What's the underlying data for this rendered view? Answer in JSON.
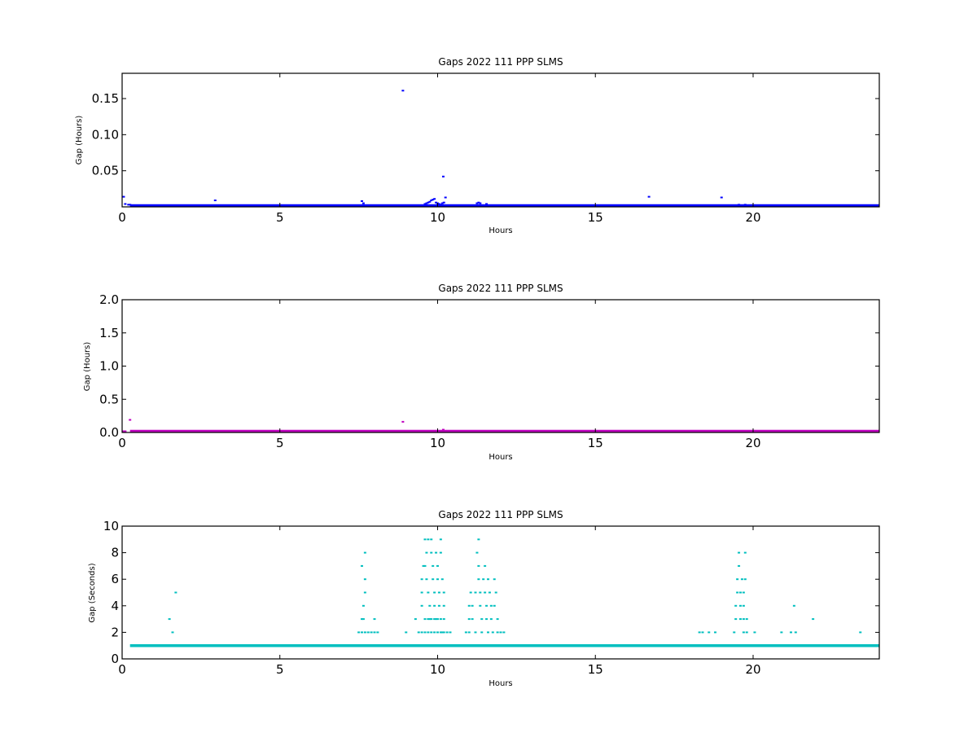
{
  "figure": {
    "background": "#ffffff"
  },
  "chart_data": [
    {
      "type": "scatter",
      "title": "Gaps 2022 111 PPP  SLMS",
      "xlabel": "Hours",
      "ylabel": "Gap (Hours)",
      "xlim": [
        0,
        24
      ],
      "ylim": [
        0,
        0.185
      ],
      "xticks": [
        0,
        5,
        10,
        15,
        20
      ],
      "yticks": [
        0.05,
        0.1,
        0.15
      ],
      "ytick_labels": [
        "0.05",
        "0.10",
        "0.15"
      ],
      "grid": false,
      "color": "#0000ff",
      "baseline": {
        "value": 0.0003,
        "from": 0.25,
        "to": 24
      },
      "points": [
        [
          0.05,
          0.014
        ],
        [
          0.1,
          0.004
        ],
        [
          0.2,
          0.003
        ],
        [
          0.25,
          0.003
        ],
        [
          2.95,
          0.009
        ],
        [
          7.6,
          0.008
        ],
        [
          7.65,
          0.005
        ],
        [
          8.9,
          0.161
        ],
        [
          9.6,
          0.004
        ],
        [
          9.65,
          0.005
        ],
        [
          9.7,
          0.006
        ],
        [
          9.75,
          0.007
        ],
        [
          9.8,
          0.009
        ],
        [
          9.85,
          0.01
        ],
        [
          9.9,
          0.011
        ],
        [
          9.95,
          0.006
        ],
        [
          10.0,
          0.005
        ],
        [
          10.05,
          0.004
        ],
        [
          10.1,
          0.003
        ],
        [
          10.15,
          0.005
        ],
        [
          10.2,
          0.006
        ],
        [
          10.18,
          0.042
        ],
        [
          10.25,
          0.013
        ],
        [
          11.25,
          0.005
        ],
        [
          11.3,
          0.006
        ],
        [
          11.35,
          0.005
        ],
        [
          11.55,
          0.004
        ],
        [
          16.7,
          0.014
        ],
        [
          19.0,
          0.013
        ],
        [
          19.55,
          0.003
        ],
        [
          19.75,
          0.003
        ]
      ]
    },
    {
      "type": "scatter",
      "title": "Gaps 2022 111 PPP  SLMS",
      "xlabel": "Hours",
      "ylabel": "Gap (Hours)",
      "xlim": [
        0,
        24
      ],
      "ylim": [
        0,
        2.0
      ],
      "xticks": [
        0,
        5,
        10,
        15,
        20
      ],
      "yticks": [
        0.0,
        0.5,
        1.0,
        1.5,
        2.0
      ],
      "ytick_labels": [
        "0.0",
        "0.5",
        "1.0",
        "1.5",
        "2.0"
      ],
      "grid": false,
      "color": "#bf00bf",
      "baseline": {
        "value": 0.0003,
        "from": 0.25,
        "to": 24
      },
      "points": [
        [
          0.05,
          0.014
        ],
        [
          0.1,
          0.004
        ],
        [
          0.25,
          0.19
        ],
        [
          8.9,
          0.161
        ],
        [
          10.18,
          0.042
        ]
      ]
    },
    {
      "type": "scatter",
      "title": "Gaps 2022 111 PPP  SLMS",
      "xlabel": "Hours",
      "ylabel": "Gap (Seconds)",
      "xlim": [
        0,
        24
      ],
      "ylim": [
        0,
        10
      ],
      "xticks": [
        0,
        5,
        10,
        15,
        20
      ],
      "yticks": [
        0,
        2,
        4,
        6,
        8,
        10
      ],
      "ytick_labels": [
        "0",
        "2",
        "4",
        "6",
        "8",
        "10"
      ],
      "grid": false,
      "color": "#00bfbf",
      "baseline": {
        "value": 1,
        "from": 0.25,
        "to": 24
      },
      "points": [
        [
          1.5,
          3
        ],
        [
          1.6,
          2
        ],
        [
          1.7,
          5
        ],
        [
          7.5,
          2
        ],
        [
          7.6,
          2
        ],
        [
          7.6,
          3
        ],
        [
          7.65,
          3
        ],
        [
          7.6,
          7
        ],
        [
          7.65,
          4
        ],
        [
          7.7,
          8
        ],
        [
          7.7,
          6
        ],
        [
          7.7,
          5
        ],
        [
          7.7,
          2
        ],
        [
          7.8,
          2
        ],
        [
          7.9,
          2
        ],
        [
          8.0,
          2
        ],
        [
          8.0,
          3
        ],
        [
          8.1,
          2
        ],
        [
          9.0,
          2
        ],
        [
          9.3,
          3
        ],
        [
          9.4,
          2
        ],
        [
          9.5,
          4
        ],
        [
          9.5,
          5
        ],
        [
          9.5,
          6
        ],
        [
          9.55,
          7
        ],
        [
          9.6,
          9
        ],
        [
          9.6,
          7
        ],
        [
          9.65,
          8
        ],
        [
          9.65,
          6
        ],
        [
          9.7,
          9
        ],
        [
          9.7,
          5
        ],
        [
          9.75,
          4
        ],
        [
          9.75,
          3
        ],
        [
          9.8,
          9
        ],
        [
          9.8,
          8
        ],
        [
          9.85,
          7
        ],
        [
          9.85,
          6
        ],
        [
          9.9,
          5
        ],
        [
          9.9,
          4
        ],
        [
          9.95,
          8
        ],
        [
          9.95,
          3
        ],
        [
          10.0,
          7
        ],
        [
          10.0,
          6
        ],
        [
          10.05,
          5
        ],
        [
          10.05,
          4
        ],
        [
          10.1,
          9
        ],
        [
          10.1,
          8
        ],
        [
          10.1,
          3
        ],
        [
          10.15,
          6
        ],
        [
          10.15,
          2
        ],
        [
          9.5,
          2
        ],
        [
          9.6,
          2
        ],
        [
          9.7,
          2
        ],
        [
          9.8,
          2
        ],
        [
          9.9,
          2
        ],
        [
          10.0,
          2
        ],
        [
          10.1,
          2
        ],
        [
          10.2,
          2
        ],
        [
          9.6,
          3
        ],
        [
          9.7,
          3
        ],
        [
          9.8,
          3
        ],
        [
          9.9,
          3
        ],
        [
          10.0,
          3
        ],
        [
          10.2,
          3
        ],
        [
          10.2,
          4
        ],
        [
          10.2,
          5
        ],
        [
          10.3,
          2
        ],
        [
          10.4,
          2
        ],
        [
          10.9,
          2
        ],
        [
          11.0,
          2
        ],
        [
          11.0,
          3
        ],
        [
          11.0,
          4
        ],
        [
          11.05,
          5
        ],
        [
          11.1,
          3
        ],
        [
          11.1,
          4
        ],
        [
          11.2,
          2
        ],
        [
          11.2,
          5
        ],
        [
          11.25,
          8
        ],
        [
          11.3,
          9
        ],
        [
          11.3,
          7
        ],
        [
          11.3,
          6
        ],
        [
          11.35,
          5
        ],
        [
          11.35,
          4
        ],
        [
          11.4,
          3
        ],
        [
          11.4,
          2
        ],
        [
          11.45,
          6
        ],
        [
          11.5,
          7
        ],
        [
          11.5,
          5
        ],
        [
          11.55,
          4
        ],
        [
          11.55,
          3
        ],
        [
          11.6,
          2
        ],
        [
          11.6,
          6
        ],
        [
          11.65,
          5
        ],
        [
          11.7,
          4
        ],
        [
          11.7,
          3
        ],
        [
          11.75,
          2
        ],
        [
          11.8,
          6
        ],
        [
          11.8,
          4
        ],
        [
          11.85,
          5
        ],
        [
          11.9,
          3
        ],
        [
          11.9,
          2
        ],
        [
          12.0,
          2
        ],
        [
          12.1,
          2
        ],
        [
          18.3,
          2
        ],
        [
          18.4,
          2
        ],
        [
          18.6,
          2
        ],
        [
          18.8,
          2
        ],
        [
          19.4,
          2
        ],
        [
          19.45,
          3
        ],
        [
          19.45,
          4
        ],
        [
          19.5,
          5
        ],
        [
          19.5,
          6
        ],
        [
          19.55,
          7
        ],
        [
          19.55,
          8
        ],
        [
          19.6,
          5
        ],
        [
          19.6,
          4
        ],
        [
          19.6,
          3
        ],
        [
          19.65,
          6
        ],
        [
          19.7,
          5
        ],
        [
          19.7,
          4
        ],
        [
          19.7,
          3
        ],
        [
          19.7,
          2
        ],
        [
          19.75,
          8
        ],
        [
          19.75,
          6
        ],
        [
          19.8,
          2
        ],
        [
          19.8,
          3
        ],
        [
          20.05,
          2
        ],
        [
          20.9,
          2
        ],
        [
          21.2,
          2
        ],
        [
          21.3,
          4
        ],
        [
          21.35,
          2
        ],
        [
          21.9,
          3
        ],
        [
          23.4,
          2
        ]
      ]
    }
  ]
}
